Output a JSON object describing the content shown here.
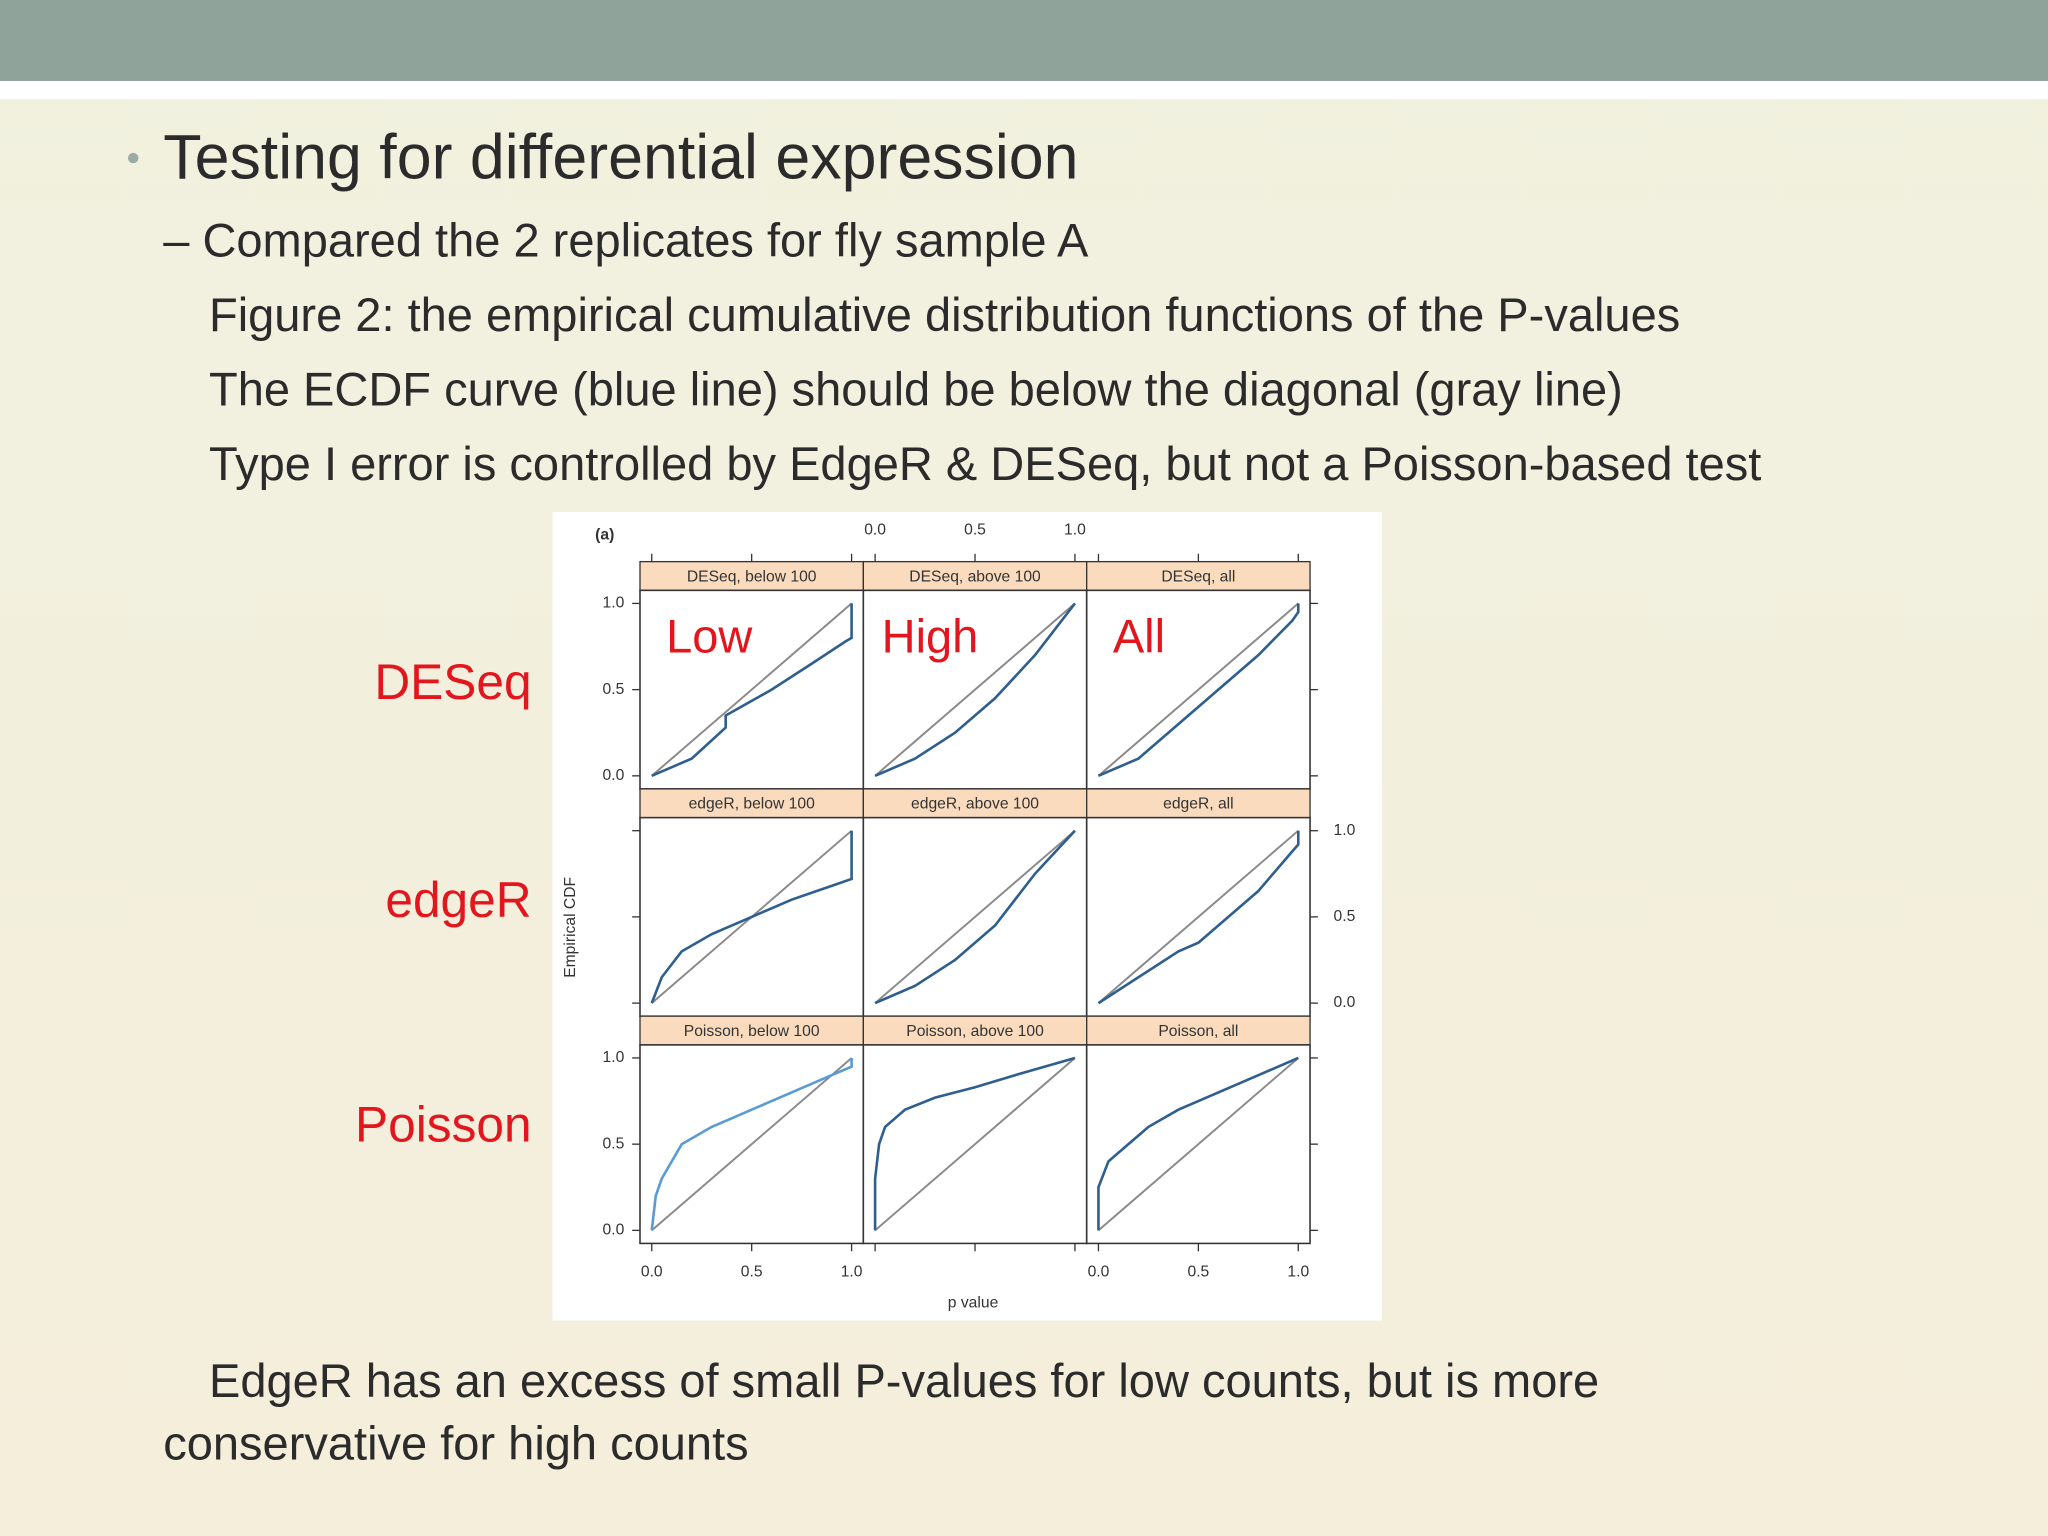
{
  "slide": {
    "bullet": "Testing for differential expression",
    "sub_bullet": "– Compared the 2 replicates for fly sample A",
    "lines": [
      "Figure 2: the empirical cumulative distribution functions of the P-values",
      "The ECDF curve (blue line) should be below the diagonal (gray line)",
      "Type I error is controlled by EdgeR & DESeq, but not a Poisson-based test"
    ],
    "row_annotations": [
      "DESeq",
      "edgeR",
      "Poisson"
    ],
    "column_annotations": [
      "Low",
      "High",
      "All"
    ],
    "conclusion": [
      "EdgeR has an excess of small P-values for low counts, but is more",
      "conservative for high counts"
    ]
  },
  "chart_data": {
    "type": "line",
    "panel_label": "(a)",
    "xlabel": "p value",
    "ylabel": "Empirical CDF",
    "xlim": [
      0,
      1
    ],
    "ylim": [
      0,
      1
    ],
    "xticks": [
      {
        "value": 0,
        "label": "0.0"
      },
      {
        "value": 0.5,
        "label": "0.5"
      },
      {
        "value": 1,
        "label": "1.0"
      }
    ],
    "yticks": [
      {
        "value": 0,
        "label": "0.0"
      },
      {
        "value": 0.5,
        "label": "0.5"
      },
      {
        "value": 1,
        "label": "1.0"
      }
    ],
    "panels": [
      {
        "title": "DESeq, below 100",
        "x": [
          0,
          0.2,
          0.37,
          0.37,
          0.6,
          0.8,
          0.97,
          1,
          1
        ],
        "series": [
          {
            "color": "#2e5f8e",
            "values": [
              0,
              0.1,
              0.28,
              0.35,
              0.5,
              0.65,
              0.78,
              0.8,
              1
            ]
          }
        ]
      },
      {
        "title": "DESeq, above 100",
        "x": [
          0,
          0.2,
          0.4,
          0.6,
          0.8,
          1
        ],
        "series": [
          {
            "color": "#2e5f8e",
            "values": [
              0,
              0.1,
              0.25,
              0.45,
              0.7,
              1
            ]
          }
        ]
      },
      {
        "title": "DESeq, all",
        "x": [
          0,
          0.2,
          0.4,
          0.6,
          0.8,
          0.97,
          1,
          1
        ],
        "series": [
          {
            "color": "#2e5f8e",
            "values": [
              0,
              0.1,
              0.3,
              0.5,
              0.7,
              0.9,
              0.95,
              1
            ]
          }
        ]
      },
      {
        "title": "edgeR, below 100",
        "x": [
          0,
          0.05,
          0.15,
          0.3,
          0.5,
          0.7,
          0.9,
          1,
          1
        ],
        "series": [
          {
            "color": "#2e5f8e",
            "values": [
              0,
              0.15,
              0.3,
              0.4,
              0.5,
              0.6,
              0.68,
              0.72,
              1
            ]
          }
        ]
      },
      {
        "title": "edgeR, above 100",
        "x": [
          0,
          0.2,
          0.4,
          0.6,
          0.8,
          1
        ],
        "series": [
          {
            "color": "#2e5f8e",
            "values": [
              0,
              0.1,
              0.25,
              0.45,
              0.75,
              1
            ]
          }
        ]
      },
      {
        "title": "edgeR, all",
        "x": [
          0,
          0.2,
          0.4,
          0.5,
          0.6,
          0.8,
          0.97,
          1,
          1
        ],
        "series": [
          {
            "color": "#2e5f8e",
            "values": [
              0,
              0.15,
              0.3,
              0.35,
              0.45,
              0.65,
              0.88,
              0.92,
              1
            ]
          }
        ]
      },
      {
        "title": "Poisson, below 100",
        "x": [
          0,
          0.02,
          0.05,
          0.1,
          0.15,
          0.3,
          0.5,
          0.7,
          0.9,
          1,
          1
        ],
        "series": [
          {
            "color": "#5a9bd5",
            "values": [
              0,
              0.2,
              0.3,
              0.4,
              0.5,
              0.6,
              0.7,
              0.8,
              0.9,
              0.95,
              1
            ]
          }
        ]
      },
      {
        "title": "Poisson, above 100",
        "x": [
          0,
          0,
          0.02,
          0.05,
          0.15,
          0.3,
          0.5,
          0.7,
          1
        ],
        "series": [
          {
            "color": "#2e5f8e",
            "values": [
              0,
              0.3,
              0.5,
              0.6,
              0.7,
              0.77,
              0.83,
              0.9,
              1
            ]
          }
        ]
      },
      {
        "title": "Poisson, all",
        "x": [
          0,
          0,
          0.05,
          0.15,
          0.25,
          0.4,
          0.6,
          0.8,
          1
        ],
        "series": [
          {
            "color": "#2e5f8e",
            "values": [
              0,
              0.25,
              0.4,
              0.5,
              0.6,
              0.7,
              0.8,
              0.9,
              1
            ]
          }
        ]
      }
    ]
  }
}
